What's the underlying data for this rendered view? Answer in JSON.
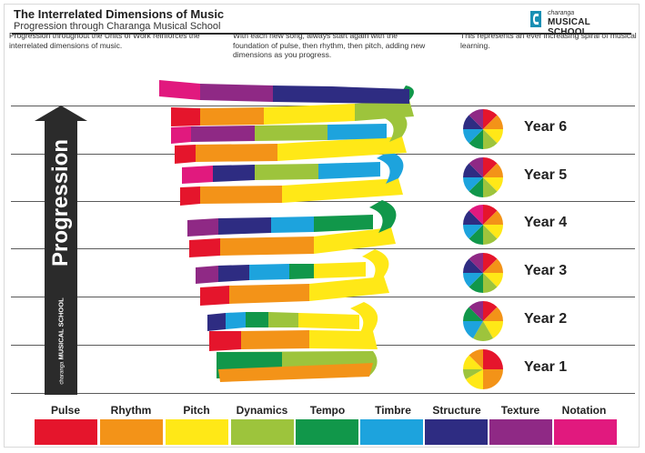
{
  "header": {
    "title": "The Interrelated Dimensions of Music",
    "subtitle": "Progression through Charanga Musical School"
  },
  "logo": {
    "small_text": "charanga",
    "brand_text": "MUSICAL SCHOOL",
    "icon": "charanga-logo-icon"
  },
  "descriptions": [
    "Progression throughout the Units of Work reinforces the interrelated dimensions of music.",
    "With each new song, always start again with the foundation of pulse, then rhythm, then pitch, adding new dimensions as you progress.",
    "This represents an ever increasing spiral of musical learning."
  ],
  "progression_arrow": {
    "label": "Progression",
    "logo_small": "charanga",
    "logo_text": "MUSICAL SCHOOL"
  },
  "years": [
    "Year 6",
    "Year 5",
    "Year 4",
    "Year 3",
    "Year 2",
    "Year 1"
  ],
  "dimensions": [
    {
      "label": "Pulse",
      "color": "#e5152c"
    },
    {
      "label": "Rhythm",
      "color": "#f39318"
    },
    {
      "label": "Pitch",
      "color": "#ffe817"
    },
    {
      "label": "Dynamics",
      "color": "#9dc43c"
    },
    {
      "label": "Tempo",
      "color": "#11974a"
    },
    {
      "label": "Timbre",
      "color": "#1da3dd"
    },
    {
      "label": "Structure",
      "color": "#2e2c82"
    },
    {
      "label": "Texture",
      "color": "#8f2985"
    },
    {
      "label": "Notation",
      "color": "#e1197e"
    }
  ]
}
